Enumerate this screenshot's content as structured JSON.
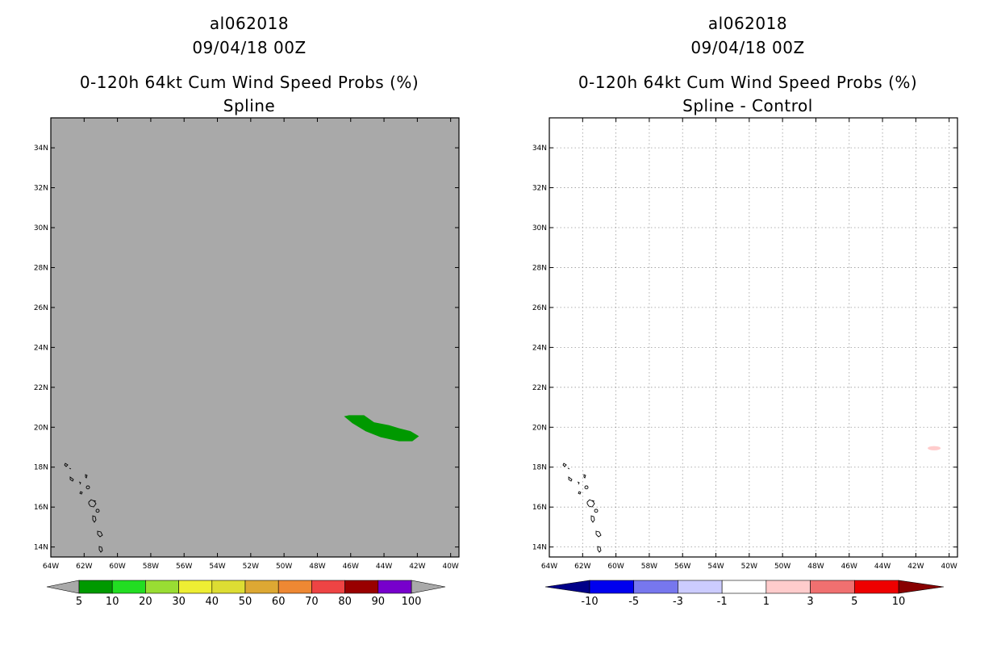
{
  "panels": [
    {
      "id": "left",
      "title_line1": "al062018",
      "title_line2": "09/04/18 00Z",
      "title_line3": "0-120h 64kt Cum Wind Speed Probs (%)",
      "title_line4": "Spline",
      "background": "#a9a9a9",
      "gridlines": false,
      "colorbar": {
        "labels": [
          "5",
          "10",
          "20",
          "30",
          "40",
          "50",
          "60",
          "70",
          "80",
          "90",
          "100"
        ],
        "colors": [
          "#009900",
          "#22dd22",
          "#99dd33",
          "#eeee33",
          "#dddd33",
          "#dda833",
          "#ee8833",
          "#ee4444",
          "#990000",
          "#7700cc"
        ],
        "end_low": "#a9a9a9",
        "end_high": "#a9a9a9"
      }
    },
    {
      "id": "right",
      "title_line1": "al062018",
      "title_line2": "09/04/18 00Z",
      "title_line3": "0-120h 64kt Cum Wind Speed Probs (%)",
      "title_line4": "Spline - Control",
      "background": "#ffffff",
      "gridlines": true,
      "colorbar": {
        "labels": [
          "-10",
          "-5",
          "-3",
          "-1",
          "1",
          "3",
          "5",
          "10"
        ],
        "colors": [
          "#0000ee",
          "#7777ee",
          "#ccccff",
          "#ffffff",
          "#ffcccc",
          "#f07070",
          "#ee0000"
        ],
        "end_low": "#000088",
        "end_high": "#880000"
      }
    }
  ],
  "chart_data": {
    "type": "heatmap",
    "x_ticks": [
      "64W",
      "62W",
      "60W",
      "58W",
      "56W",
      "54W",
      "52W",
      "50W",
      "48W",
      "46W",
      "44W",
      "42W",
      "40W"
    ],
    "y_ticks": [
      "34N",
      "32N",
      "30N",
      "28N",
      "26N",
      "24N",
      "22N",
      "20N",
      "18N",
      "16N",
      "14N"
    ],
    "xlim_lon": [
      -64,
      -39.5
    ],
    "ylim_lat": [
      13.5,
      35.5
    ],
    "left_prob_region": {
      "value_range": "5-10",
      "color": "#009900",
      "polygon_lonlat": [
        [
          -46.1,
          20.6
        ],
        [
          -45.2,
          20.6
        ],
        [
          -44.6,
          20.25
        ],
        [
          -43.7,
          20.1
        ],
        [
          -43.1,
          19.95
        ],
        [
          -42.4,
          19.8
        ],
        [
          -41.9,
          19.55
        ],
        [
          -42.3,
          19.3
        ],
        [
          -43.1,
          19.3
        ],
        [
          -44.2,
          19.5
        ],
        [
          -45.1,
          19.8
        ],
        [
          -45.9,
          20.2
        ],
        [
          -46.4,
          20.55
        ]
      ]
    },
    "right_diff_region": {
      "value_range": "1-3",
      "color": "#ffcccc",
      "center_lonlat": [
        -40.9,
        18.95
      ]
    }
  }
}
